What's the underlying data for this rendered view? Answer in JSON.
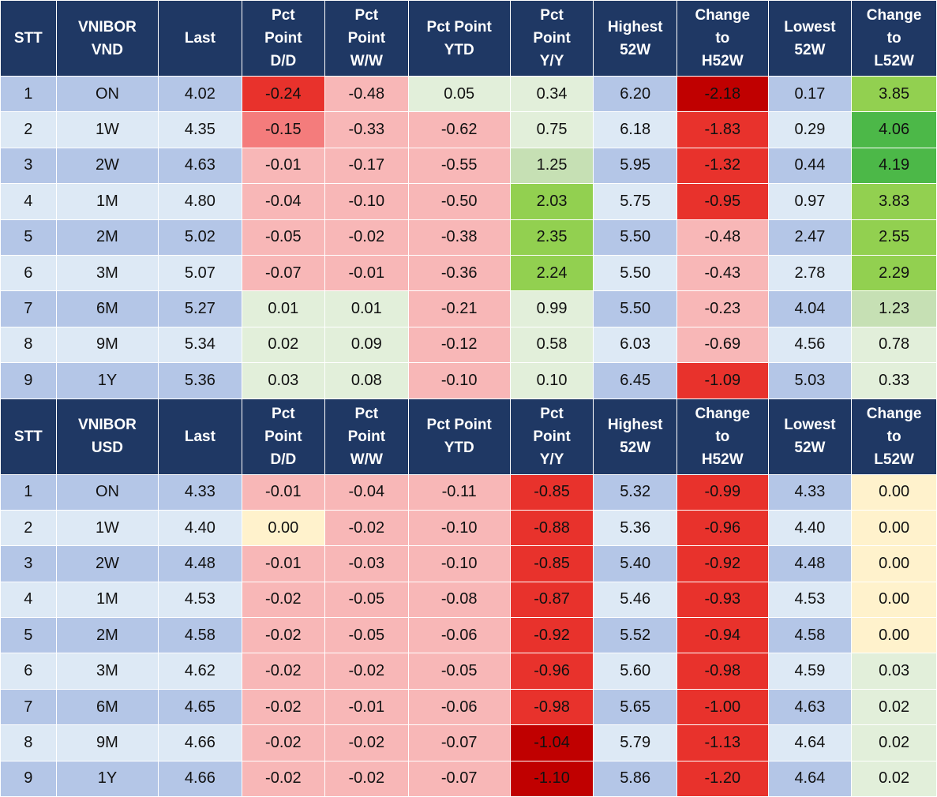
{
  "chart_data": {
    "type": "table",
    "tables": [
      {
        "columns": [
          "STT",
          "VNIBOR\nVND",
          "Last",
          "Pct\nPoint\nD/D",
          "Pct\nPoint\nW/W",
          "Pct Point\nYTD",
          "Pct\nPoint\nY/Y",
          "Highest\n52W",
          "Change\nto\nH52W",
          "Lowest\n52W",
          "Change\nto\nL52W"
        ],
        "rows": [
          {
            "stt": "1",
            "term": "ON",
            "last": "4.02",
            "dd": "-0.24",
            "ww": "-0.48",
            "ytd": "0.05",
            "yy": "0.34",
            "h52": "6.20",
            "ch": "-2.18",
            "l52": "0.17",
            "cl": "3.85"
          },
          {
            "stt": "2",
            "term": "1W",
            "last": "4.35",
            "dd": "-0.15",
            "ww": "-0.33",
            "ytd": "-0.62",
            "yy": "0.75",
            "h52": "6.18",
            "ch": "-1.83",
            "l52": "0.29",
            "cl": "4.06"
          },
          {
            "stt": "3",
            "term": "2W",
            "last": "4.63",
            "dd": "-0.01",
            "ww": "-0.17",
            "ytd": "-0.55",
            "yy": "1.25",
            "h52": "5.95",
            "ch": "-1.32",
            "l52": "0.44",
            "cl": "4.19"
          },
          {
            "stt": "4",
            "term": "1M",
            "last": "4.80",
            "dd": "-0.04",
            "ww": "-0.10",
            "ytd": "-0.50",
            "yy": "2.03",
            "h52": "5.75",
            "ch": "-0.95",
            "l52": "0.97",
            "cl": "3.83"
          },
          {
            "stt": "5",
            "term": "2M",
            "last": "5.02",
            "dd": "-0.05",
            "ww": "-0.02",
            "ytd": "-0.38",
            "yy": "2.35",
            "h52": "5.50",
            "ch": "-0.48",
            "l52": "2.47",
            "cl": "2.55"
          },
          {
            "stt": "6",
            "term": "3M",
            "last": "5.07",
            "dd": "-0.07",
            "ww": "-0.01",
            "ytd": "-0.36",
            "yy": "2.24",
            "h52": "5.50",
            "ch": "-0.43",
            "l52": "2.78",
            "cl": "2.29"
          },
          {
            "stt": "7",
            "term": "6M",
            "last": "5.27",
            "dd": "0.01",
            "ww": "0.01",
            "ytd": "-0.21",
            "yy": "0.99",
            "h52": "5.50",
            "ch": "-0.23",
            "l52": "4.04",
            "cl": "1.23"
          },
          {
            "stt": "8",
            "term": "9M",
            "last": "5.34",
            "dd": "0.02",
            "ww": "0.09",
            "ytd": "-0.12",
            "yy": "0.58",
            "h52": "6.03",
            "ch": "-0.69",
            "l52": "4.56",
            "cl": "0.78"
          },
          {
            "stt": "9",
            "term": "1Y",
            "last": "5.36",
            "dd": "0.03",
            "ww": "0.08",
            "ytd": "-0.10",
            "yy": "0.10",
            "h52": "6.45",
            "ch": "-1.09",
            "l52": "5.03",
            "cl": "0.33"
          }
        ]
      },
      {
        "columns": [
          "STT",
          "VNIBOR\nUSD",
          "Last",
          "Pct\nPoint\nD/D",
          "Pct\nPoint\nW/W",
          "Pct Point\nYTD",
          "Pct\nPoint\nY/Y",
          "Highest\n52W",
          "Change\nto\nH52W",
          "Lowest\n52W",
          "Change\nto\nL52W"
        ],
        "rows": [
          {
            "stt": "1",
            "term": "ON",
            "last": "4.33",
            "dd": "-0.01",
            "ww": "-0.04",
            "ytd": "-0.11",
            "yy": "-0.85",
            "h52": "5.32",
            "ch": "-0.99",
            "l52": "4.33",
            "cl": "0.00"
          },
          {
            "stt": "2",
            "term": "1W",
            "last": "4.40",
            "dd": "0.00",
            "ww": "-0.02",
            "ytd": "-0.10",
            "yy": "-0.88",
            "h52": "5.36",
            "ch": "-0.96",
            "l52": "4.40",
            "cl": "0.00"
          },
          {
            "stt": "3",
            "term": "2W",
            "last": "4.48",
            "dd": "-0.01",
            "ww": "-0.03",
            "ytd": "-0.10",
            "yy": "-0.85",
            "h52": "5.40",
            "ch": "-0.92",
            "l52": "4.48",
            "cl": "0.00"
          },
          {
            "stt": "4",
            "term": "1M",
            "last": "4.53",
            "dd": "-0.02",
            "ww": "-0.05",
            "ytd": "-0.08",
            "yy": "-0.87",
            "h52": "5.46",
            "ch": "-0.93",
            "l52": "4.53",
            "cl": "0.00"
          },
          {
            "stt": "5",
            "term": "2M",
            "last": "4.58",
            "dd": "-0.02",
            "ww": "-0.05",
            "ytd": "-0.06",
            "yy": "-0.92",
            "h52": "5.52",
            "ch": "-0.94",
            "l52": "4.58",
            "cl": "0.00"
          },
          {
            "stt": "6",
            "term": "3M",
            "last": "4.62",
            "dd": "-0.02",
            "ww": "-0.02",
            "ytd": "-0.05",
            "yy": "-0.96",
            "h52": "5.60",
            "ch": "-0.98",
            "l52": "4.59",
            "cl": "0.03"
          },
          {
            "stt": "7",
            "term": "6M",
            "last": "4.65",
            "dd": "-0.02",
            "ww": "-0.01",
            "ytd": "-0.06",
            "yy": "-0.98",
            "h52": "5.65",
            "ch": "-1.00",
            "l52": "4.63",
            "cl": "0.02"
          },
          {
            "stt": "8",
            "term": "9M",
            "last": "4.66",
            "dd": "-0.02",
            "ww": "-0.02",
            "ytd": "-0.07",
            "yy": "-1.04",
            "h52": "5.79",
            "ch": "-1.13",
            "l52": "4.64",
            "cl": "0.02"
          },
          {
            "stt": "9",
            "term": "1Y",
            "last": "4.66",
            "dd": "-0.02",
            "ww": "-0.02",
            "ytd": "-0.07",
            "yy": "-1.10",
            "h52": "5.86",
            "ch": "-1.20",
            "l52": "4.64",
            "cl": "0.02"
          }
        ]
      }
    ]
  },
  "colors": {
    "header_bg": "#1f3864",
    "header_text": "#ffffff",
    "band_dark": "#b4c6e7",
    "band_light": "#dde9f5",
    "neutral_light_green": "#e2efda",
    "neutral_yellow": "#fff2cc",
    "neg_light": "#f8b7b7",
    "neg_mid": "#f47c7c",
    "neg_strong": "#e8322c",
    "neg_darkest": "#c00000",
    "pos_light": "#c6e0b4",
    "pos_mid": "#92d050",
    "pos_strong": "#4cb848"
  }
}
